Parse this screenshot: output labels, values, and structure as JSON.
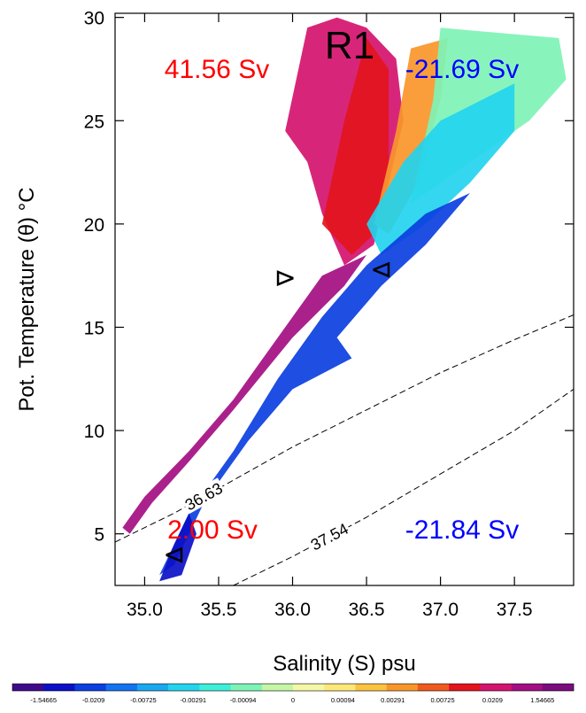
{
  "chart_data": {
    "type": "heatmap",
    "title": "R1",
    "xlabel": "Salinity (S) psu",
    "ylabel": "Pot. Temperature (θ) °C",
    "xlim": [
      34.8,
      37.9
    ],
    "ylim": [
      2.5,
      30.2
    ],
    "xticks": [
      "35.0",
      "35.5",
      "36.0",
      "36.5",
      "37.0",
      "37.5"
    ],
    "yticks": [
      "5",
      "10",
      "15",
      "20",
      "25",
      "30"
    ],
    "annotations": [
      {
        "text": "41.56 Sv",
        "color": "#ff0000",
        "quadrant": "upper-left"
      },
      {
        "text": "-21.69 Sv",
        "color": "#0000ff",
        "quadrant": "upper-right"
      },
      {
        "text": "2.00 Sv",
        "color": "#ff0000",
        "quadrant": "lower-left"
      },
      {
        "text": "-21.84 Sv",
        "color": "#0000ff",
        "quadrant": "lower-right"
      }
    ],
    "contours": [
      {
        "label": "36.63",
        "style": "dashed",
        "points": [
          [
            34.8,
            4.6
          ],
          [
            35.2,
            6.0
          ],
          [
            35.6,
            7.6
          ],
          [
            36.0,
            9.2
          ],
          [
            36.5,
            11.0
          ],
          [
            37.0,
            12.8
          ],
          [
            37.5,
            14.4
          ],
          [
            37.9,
            15.6
          ]
        ]
      },
      {
        "label": "37.54",
        "style": "dashed",
        "points": [
          [
            35.6,
            2.5
          ],
          [
            36.0,
            3.9
          ],
          [
            36.5,
            5.8
          ],
          [
            37.0,
            7.9
          ],
          [
            37.5,
            10.0
          ],
          [
            37.9,
            12.0
          ]
        ]
      }
    ],
    "markers": [
      {
        "symbol": "⊳",
        "s": 35.95,
        "t": 17.4
      },
      {
        "symbol": "⊲",
        "s": 36.6,
        "t": 17.8
      },
      {
        "symbol": "⊲",
        "s": 35.2,
        "t": 4.0
      }
    ],
    "colorbar": {
      "labels": [
        "-1.54665",
        "-0.0209",
        "-0.00725",
        "-0.00291",
        "-0.00094",
        "0",
        "0.00094",
        "0.00291",
        "0.00725",
        "0.0209",
        "1.54665"
      ],
      "colors": [
        "#3f0a8c",
        "#0b10c8",
        "#0b3fe0",
        "#1473f0",
        "#19a9f0",
        "#23d4ee",
        "#3deed9",
        "#7ef3b6",
        "#c4f6a6",
        "#f4f7a6",
        "#fde879",
        "#fbc33e",
        "#f8962a",
        "#f15a1e",
        "#e3141e",
        "#d4146e",
        "#a40e82",
        "#7b0c7e"
      ],
      "orientation": "horizontal",
      "position": "bottom"
    },
    "regions": [
      {
        "name": "warm-upper-left-body",
        "polygon": [
          [
            35.95,
            24.5
          ],
          [
            36.1,
            29.5
          ],
          [
            36.3,
            30.0
          ],
          [
            36.5,
            29.5
          ],
          [
            36.7,
            28.0
          ],
          [
            36.75,
            25.0
          ],
          [
            36.65,
            22.0
          ],
          [
            36.55,
            19.0
          ],
          [
            36.35,
            18.0
          ],
          [
            36.2,
            20.5
          ],
          [
            36.1,
            23.0
          ]
        ],
        "value": 0.03
      },
      {
        "name": "warm-core",
        "polygon": [
          [
            36.2,
            20.0
          ],
          [
            36.35,
            25.0
          ],
          [
            36.5,
            29.0
          ],
          [
            36.65,
            27.5
          ],
          [
            36.65,
            23.0
          ],
          [
            36.55,
            19.5
          ],
          [
            36.4,
            18.5
          ]
        ],
        "value": 0.012
      },
      {
        "name": "warm-diagonal-arm",
        "polygon": [
          [
            34.85,
            5.3
          ],
          [
            35.0,
            6.8
          ],
          [
            35.3,
            9.0
          ],
          [
            35.6,
            11.5
          ],
          [
            35.9,
            14.5
          ],
          [
            36.2,
            17.5
          ],
          [
            36.5,
            18.5
          ],
          [
            36.35,
            17.0
          ],
          [
            36.0,
            14.5
          ],
          [
            35.6,
            11.0
          ],
          [
            35.3,
            8.5
          ],
          [
            35.05,
            6.5
          ],
          [
            34.9,
            5.0
          ]
        ],
        "value": 0.9
      },
      {
        "name": "yellow-transition",
        "polygon": [
          [
            36.55,
            20.0
          ],
          [
            36.7,
            24.5
          ],
          [
            36.8,
            28.5
          ],
          [
            37.05,
            29.0
          ],
          [
            37.0,
            26.0
          ],
          [
            36.85,
            22.0
          ],
          [
            36.65,
            19.5
          ]
        ],
        "value": 0.003
      },
      {
        "name": "green-upper-right",
        "polygon": [
          [
            36.8,
            21.0
          ],
          [
            36.95,
            26.0
          ],
          [
            37.0,
            29.5
          ],
          [
            37.8,
            29.0
          ],
          [
            37.85,
            27.0
          ],
          [
            37.6,
            25.0
          ],
          [
            37.3,
            23.5
          ],
          [
            37.0,
            22.0
          ]
        ],
        "value": -0.0009
      },
      {
        "name": "cyan-upper-right",
        "polygon": [
          [
            36.5,
            20.0
          ],
          [
            36.75,
            23.0
          ],
          [
            37.0,
            25.0
          ],
          [
            37.5,
            26.8
          ],
          [
            37.5,
            24.5
          ],
          [
            37.2,
            22.0
          ],
          [
            36.9,
            20.0
          ],
          [
            36.6,
            18.5
          ]
        ],
        "value": -0.004
      },
      {
        "name": "cool-diagonal-arm",
        "polygon": [
          [
            35.1,
            3.0
          ],
          [
            35.3,
            6.0
          ],
          [
            35.6,
            9.0
          ],
          [
            35.9,
            12.5
          ],
          [
            36.2,
            15.5
          ],
          [
            36.5,
            18.0
          ],
          [
            36.9,
            20.5
          ],
          [
            37.2,
            21.5
          ],
          [
            36.9,
            19.0
          ],
          [
            36.6,
            17.0
          ],
          [
            36.3,
            14.5
          ],
          [
            36.4,
            13.5
          ],
          [
            36.0,
            12.0
          ],
          [
            35.7,
            9.5
          ],
          [
            35.4,
            6.5
          ],
          [
            35.2,
            3.5
          ]
        ],
        "value": -0.015
      },
      {
        "name": "deep-cool-tail",
        "polygon": [
          [
            35.1,
            2.7
          ],
          [
            35.2,
            4.5
          ],
          [
            35.3,
            6.0
          ],
          [
            35.35,
            5.0
          ],
          [
            35.25,
            3.0
          ]
        ],
        "value": -0.3
      }
    ]
  }
}
